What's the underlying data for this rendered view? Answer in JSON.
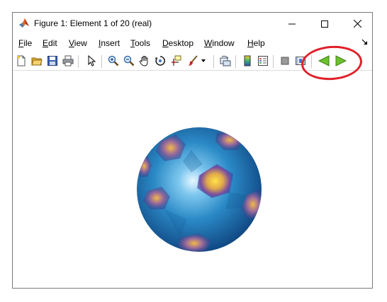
{
  "window": {
    "title": "Figure 1: Element 1 of 20  (real)"
  },
  "menu": {
    "items": [
      {
        "label": "File"
      },
      {
        "label": "Edit"
      },
      {
        "label": "View"
      },
      {
        "label": "Insert"
      },
      {
        "label": "Tools"
      },
      {
        "label": "Desktop"
      },
      {
        "label": "Window"
      },
      {
        "label": "Help"
      }
    ]
  },
  "toolbar": {
    "buttons": [
      {
        "icon": "new-figure-icon"
      },
      {
        "icon": "open-file-icon"
      },
      {
        "icon": "save-icon"
      },
      {
        "icon": "print-icon"
      },
      {
        "icon": "select-pointer-icon"
      },
      {
        "icon": "zoom-in-icon"
      },
      {
        "icon": "zoom-out-icon"
      },
      {
        "icon": "pan-hand-icon"
      },
      {
        "icon": "rotate-3d-icon"
      },
      {
        "icon": "data-cursor-icon"
      },
      {
        "icon": "brush-icon"
      },
      {
        "icon": "link-plot-icon"
      },
      {
        "icon": "colorbar-icon"
      },
      {
        "icon": "legend-icon"
      },
      {
        "icon": "hide-plot-tools-icon"
      },
      {
        "icon": "show-plot-tools-icon"
      },
      {
        "icon": "previous-arrow-icon"
      },
      {
        "icon": "next-arrow-icon"
      }
    ]
  },
  "colors": {
    "sphere_base": "#1d6fae",
    "sphere_highlight": "#e8f6ff",
    "patch_hot": "#f4d23a",
    "annotation": "#e0202a",
    "arrow_green": "#6cc12c"
  }
}
